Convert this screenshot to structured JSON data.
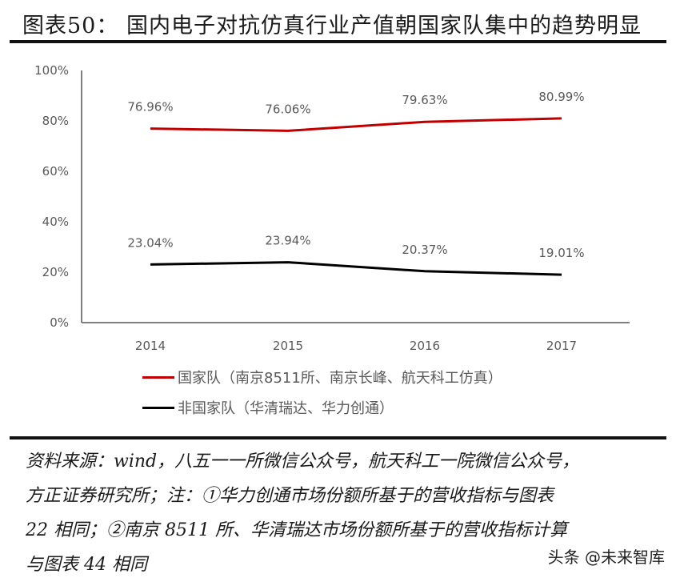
{
  "header": {
    "title": "图表50：  国内电子对抗仿真行业产值朝国家队集中的趋势明显"
  },
  "chart_data": {
    "type": "line",
    "title": "国内电子对抗仿真行业产值朝国家队集中的趋势明显",
    "categories": [
      "2014",
      "2015",
      "2016",
      "2017"
    ],
    "series": [
      {
        "name": "国家队（南京8511所、南京长峰、航天科工仿真）",
        "color": "#c00000",
        "values": [
          76.96,
          76.06,
          79.63,
          80.99
        ],
        "labels": [
          "76.96%",
          "76.06%",
          "79.63%",
          "80.99%"
        ]
      },
      {
        "name": "非国家队（华清瑞达、华力创通）",
        "color": "#000000",
        "values": [
          23.04,
          23.94,
          20.37,
          19.01
        ],
        "labels": [
          "23.04%",
          "23.94%",
          "20.37%",
          "19.01%"
        ]
      }
    ],
    "yticks": [
      "0%",
      "20%",
      "40%",
      "60%",
      "80%",
      "100%"
    ],
    "xlabel": "",
    "ylabel": "",
    "ylim": [
      0,
      100
    ],
    "grid": false,
    "legend_position": "bottom"
  },
  "source": {
    "lines": [
      "资料来源：wind，八五一一所微信公众号，航天科工一院微信公众号，",
      "方正证券研究所；注：①华力创通市场份额所基于的营收指标与图表",
      "22 相同；②南京 8511 所、华清瑞达市场份额所基于的营收指标计算",
      "与图表 44 相同"
    ]
  },
  "watermark": "头条 @未来智库"
}
